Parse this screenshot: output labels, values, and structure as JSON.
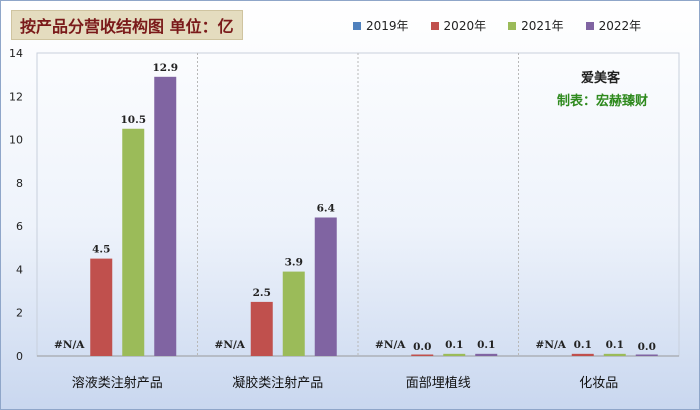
{
  "title": "按产品分营收结构图 单位：亿",
  "legend": [
    "2019年",
    "2020年",
    "2021年",
    "2022年"
  ],
  "colors": {
    "2019年": "#4f81bd",
    "2020年": "#c0504d",
    "2021年": "#9bbb59",
    "2022年": "#8064a2"
  },
  "watermark": {
    "line1": "爱美客",
    "line2": "制表：宏赫臻财"
  },
  "chart_data": {
    "type": "bar",
    "categories": [
      "溶液类注射产品",
      "凝胶类注射产品",
      "面部埋植线",
      "化妆品"
    ],
    "series": [
      {
        "name": "2019年",
        "values": [
          null,
          null,
          null,
          null
        ],
        "labels": [
          "#N/A",
          "#N/A",
          "#N/A",
          "#N/A"
        ]
      },
      {
        "name": "2020年",
        "values": [
          4.5,
          2.5,
          0.0,
          0.1
        ],
        "labels": [
          "4.5",
          "2.5",
          "0.0",
          "0.1"
        ]
      },
      {
        "name": "2021年",
        "values": [
          10.5,
          3.9,
          0.1,
          0.1
        ],
        "labels": [
          "10.5",
          "3.9",
          "0.1",
          "0.1"
        ]
      },
      {
        "name": "2022年",
        "values": [
          12.9,
          6.4,
          0.1,
          0.0
        ],
        "labels": [
          "12.9",
          "6.4",
          "0.1",
          "0.0"
        ]
      }
    ],
    "yticks": [
      0,
      2,
      4,
      6,
      8,
      10,
      12,
      14
    ],
    "ylim": [
      0,
      14
    ],
    "grid": "vertical-dashed-category-separators",
    "legend_position": "top-right"
  }
}
